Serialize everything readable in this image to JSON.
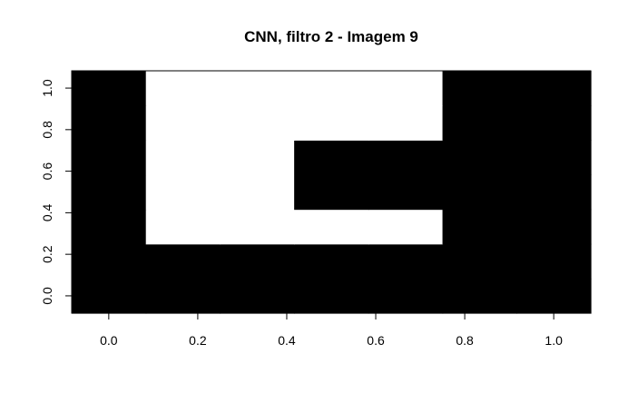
{
  "chart_data": {
    "type": "heatmap",
    "title": "CNN, filtro 2 - Imagem 9",
    "xlabel": "",
    "ylabel": "",
    "x": [
      0.0,
      0.1667,
      0.3333,
      0.5,
      0.6667,
      0.8333,
      1.0
    ],
    "y": [
      0.0,
      0.1667,
      0.3333,
      0.5,
      0.6667,
      0.8333,
      1.0
    ],
    "xlim": [
      -0.0833,
      1.0833
    ],
    "ylim": [
      -0.0833,
      1.0833
    ],
    "x_ticks": [
      0.0,
      0.2,
      0.4,
      0.6,
      0.8,
      1.0
    ],
    "y_ticks": [
      0.0,
      0.2,
      0.4,
      0.6,
      0.8,
      1.0
    ],
    "x_tick_labels": [
      "0.0",
      "0.2",
      "0.4",
      "0.6",
      "0.8",
      "1.0"
    ],
    "y_tick_labels": [
      "0.0",
      "0.2",
      "0.4",
      "0.6",
      "0.8",
      "1.0"
    ],
    "z": [
      [
        0,
        0,
        0,
        0,
        0,
        0,
        0
      ],
      [
        0,
        0,
        0,
        0,
        0,
        0,
        0
      ],
      [
        0,
        1,
        1,
        1,
        1,
        0,
        0
      ],
      [
        0,
        1,
        1,
        0,
        0,
        0,
        0
      ],
      [
        0,
        1,
        1,
        0,
        0,
        0,
        0
      ],
      [
        0,
        1,
        1,
        1,
        1,
        0,
        0
      ],
      [
        0,
        1,
        1,
        1,
        1,
        0,
        0
      ]
    ],
    "z_note_rows": "rows ordered by y from 0.0 (bottom) to 1.0 (top)",
    "colors": {
      "low": "#000000",
      "high": "#ffffff"
    },
    "grid": false,
    "legend": "none"
  }
}
